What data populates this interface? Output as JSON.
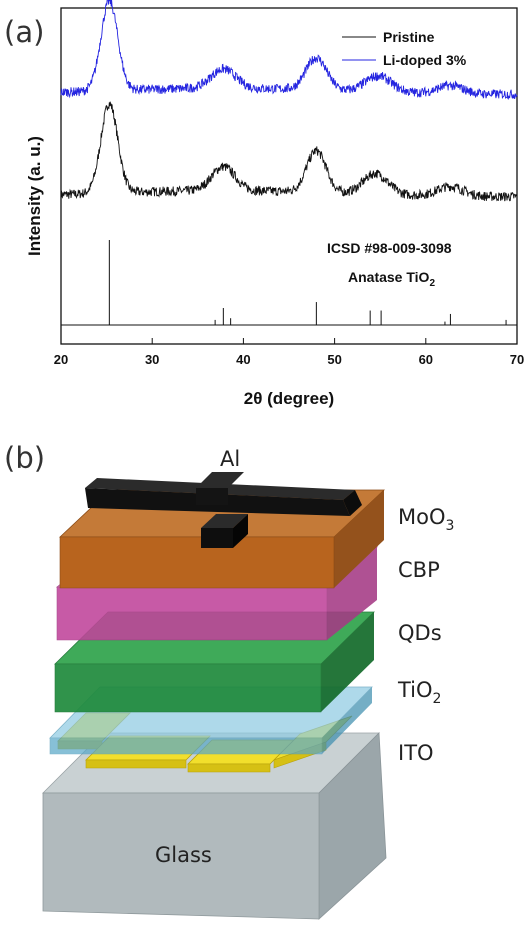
{
  "figure": {
    "panel_a_label": "(a)",
    "panel_b_label": "(b)"
  },
  "chart_data": {
    "type": "line",
    "title": "",
    "xlabel_symbol": "2θ",
    "xlabel_rest": " (degree)",
    "ylabel": "Intensity (a. u.)",
    "xlim": [
      20,
      70
    ],
    "x_ticks": [
      "20",
      "30",
      "40",
      "50",
      "60",
      "70"
    ],
    "y_ticks_shown": false,
    "legend_position": "top-right",
    "series": [
      {
        "name": "Pristine",
        "color": "#111111",
        "offset": 0.0,
        "peaks": [
          {
            "two_theta": 25.3,
            "height": 0.56,
            "width": 1.3
          },
          {
            "two_theta": 37.8,
            "height": 0.15,
            "width": 1.8
          },
          {
            "two_theta": 48.0,
            "height": 0.26,
            "width": 1.5
          },
          {
            "two_theta": 54.5,
            "height": 0.13,
            "width": 1.9
          },
          {
            "two_theta": 62.7,
            "height": 0.06,
            "width": 2.0
          }
        ]
      },
      {
        "name": "Li-doped 3%",
        "color": "#2525e0",
        "offset": 0.64,
        "peaks": [
          {
            "two_theta": 25.3,
            "height": 0.56,
            "width": 1.3
          },
          {
            "two_theta": 37.8,
            "height": 0.12,
            "width": 1.9
          },
          {
            "two_theta": 48.0,
            "height": 0.2,
            "width": 1.6
          },
          {
            "two_theta": 54.8,
            "height": 0.1,
            "width": 2.0
          },
          {
            "two_theta": 62.7,
            "height": 0.05,
            "width": 2.0
          }
        ]
      }
    ],
    "reference": {
      "label": "ICSD #98-009-3098",
      "phase_text": "Anatase TiO",
      "phase_subscript": "2",
      "lines": [
        {
          "two_theta": 25.3,
          "intensity": 100
        },
        {
          "two_theta": 36.9,
          "intensity": 6
        },
        {
          "two_theta": 37.8,
          "intensity": 20
        },
        {
          "two_theta": 38.6,
          "intensity": 8
        },
        {
          "two_theta": 48.0,
          "intensity": 27
        },
        {
          "two_theta": 53.9,
          "intensity": 17
        },
        {
          "two_theta": 55.1,
          "intensity": 17
        },
        {
          "two_theta": 62.1,
          "intensity": 4
        },
        {
          "two_theta": 62.7,
          "intensity": 13
        },
        {
          "two_theta": 68.8,
          "intensity": 6
        }
      ]
    }
  },
  "device": {
    "top_electrode_label": "Al",
    "layers": [
      {
        "id": "moo3",
        "text": "MoO",
        "sub": "3",
        "color": "#b8641e"
      },
      {
        "id": "cbp",
        "text": "CBP",
        "sub": "",
        "color": "#c0449a"
      },
      {
        "id": "qds",
        "text": "QDs",
        "sub": "",
        "color": "#1f8a3c"
      },
      {
        "id": "tio2",
        "text": "TiO",
        "sub": "2",
        "color": "#5aa8c8"
      },
      {
        "id": "ito",
        "text": "ITO",
        "sub": "",
        "color": "#e6d21a"
      },
      {
        "id": "glass",
        "text": "Glass",
        "sub": "",
        "color": "#aab3b6"
      }
    ]
  }
}
